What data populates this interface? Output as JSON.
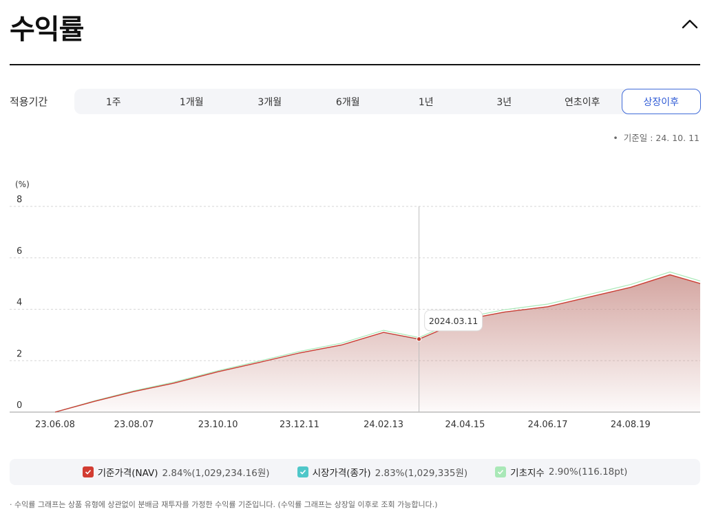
{
  "page": {
    "title": "수익률"
  },
  "period": {
    "label": "적용기간",
    "tabs": [
      {
        "label": "1주"
      },
      {
        "label": "1개월"
      },
      {
        "label": "3개월"
      },
      {
        "label": "6개월"
      },
      {
        "label": "1년"
      },
      {
        "label": "3년"
      },
      {
        "label": "연초이후"
      },
      {
        "label": "상장이후",
        "active": true
      }
    ]
  },
  "basis_date": "기준일 : 24. 10. 11",
  "legend": [
    {
      "name": "기준가격(NAV)",
      "value": "2.84%(1,029,234.16원)",
      "color": "#d23c32"
    },
    {
      "name": "시장가격(종가)",
      "value": "2.83%(1,029,335원)",
      "color": "#4fc7c9"
    },
    {
      "name": "기초지수",
      "value": "2.90%(116.18pt)",
      "color": "#a9e8b7"
    }
  ],
  "footnote": "수익률 그래프는 상품 유형에 상관없이 분배금 재투자를 가정한 수익률 기준입니다. (수익률 그래프는 상장일 이후로 조회 가능합니다.)",
  "chart_data": {
    "type": "area",
    "ylabel": "(%)",
    "ylim": [
      0,
      8
    ],
    "yticks": [
      0,
      2,
      4,
      6,
      8
    ],
    "x_tick_labels": [
      "23.06.08",
      "23.08.07",
      "23.10.10",
      "23.12.11",
      "24.02.13",
      "24.04.15",
      "24.06.17",
      "24.08.19"
    ],
    "x_start": "23.06.08",
    "x_end": "24.10.11",
    "grid": "horizontal-dashed",
    "tooltip": {
      "date": "2024.03.11",
      "value": 2.84
    },
    "series": [
      {
        "name": "기준가격(NAV)",
        "color": "#d23c32",
        "x": [
          "2023-06-08",
          "2023-07-08",
          "2023-08-07",
          "2023-09-06",
          "2023-10-10",
          "2023-11-10",
          "2023-12-11",
          "2024-01-12",
          "2024-02-13",
          "2024-03-11",
          "2024-04-15",
          "2024-05-15",
          "2024-06-17",
          "2024-07-18",
          "2024-08-19",
          "2024-09-18",
          "2024-10-11"
        ],
        "values": [
          0.0,
          0.42,
          0.8,
          1.12,
          1.57,
          1.93,
          2.3,
          2.61,
          3.1,
          2.84,
          3.6,
          3.89,
          4.1,
          4.47,
          4.85,
          5.34,
          5.0
        ]
      },
      {
        "name": "시장가격(종가)",
        "color": "#4fc7c9",
        "x": [
          "2023-06-08",
          "2023-07-08",
          "2023-08-07",
          "2023-09-06",
          "2023-10-10",
          "2023-11-10",
          "2023-12-11",
          "2024-01-12",
          "2024-02-13",
          "2024-03-11",
          "2024-04-15",
          "2024-05-15",
          "2024-06-17",
          "2024-07-18",
          "2024-08-19",
          "2024-09-18",
          "2024-10-11"
        ],
        "values": [
          0.0,
          0.42,
          0.8,
          1.12,
          1.57,
          1.93,
          2.3,
          2.61,
          3.1,
          2.83,
          3.6,
          3.89,
          4.1,
          4.47,
          4.85,
          5.34,
          5.0
        ]
      },
      {
        "name": "기초지수",
        "color": "#a9e8b7",
        "x": [
          "2023-06-08",
          "2023-07-08",
          "2023-08-07",
          "2023-09-06",
          "2023-10-10",
          "2023-11-10",
          "2023-12-11",
          "2024-01-12",
          "2024-02-13",
          "2024-03-11",
          "2024-04-15",
          "2024-05-15",
          "2024-06-17",
          "2024-07-18",
          "2024-08-19",
          "2024-09-18",
          "2024-10-11"
        ],
        "values": [
          0.0,
          0.44,
          0.83,
          1.16,
          1.61,
          1.98,
          2.36,
          2.68,
          3.18,
          2.9,
          3.68,
          3.98,
          4.2,
          4.57,
          4.96,
          5.45,
          5.1
        ]
      }
    ]
  }
}
